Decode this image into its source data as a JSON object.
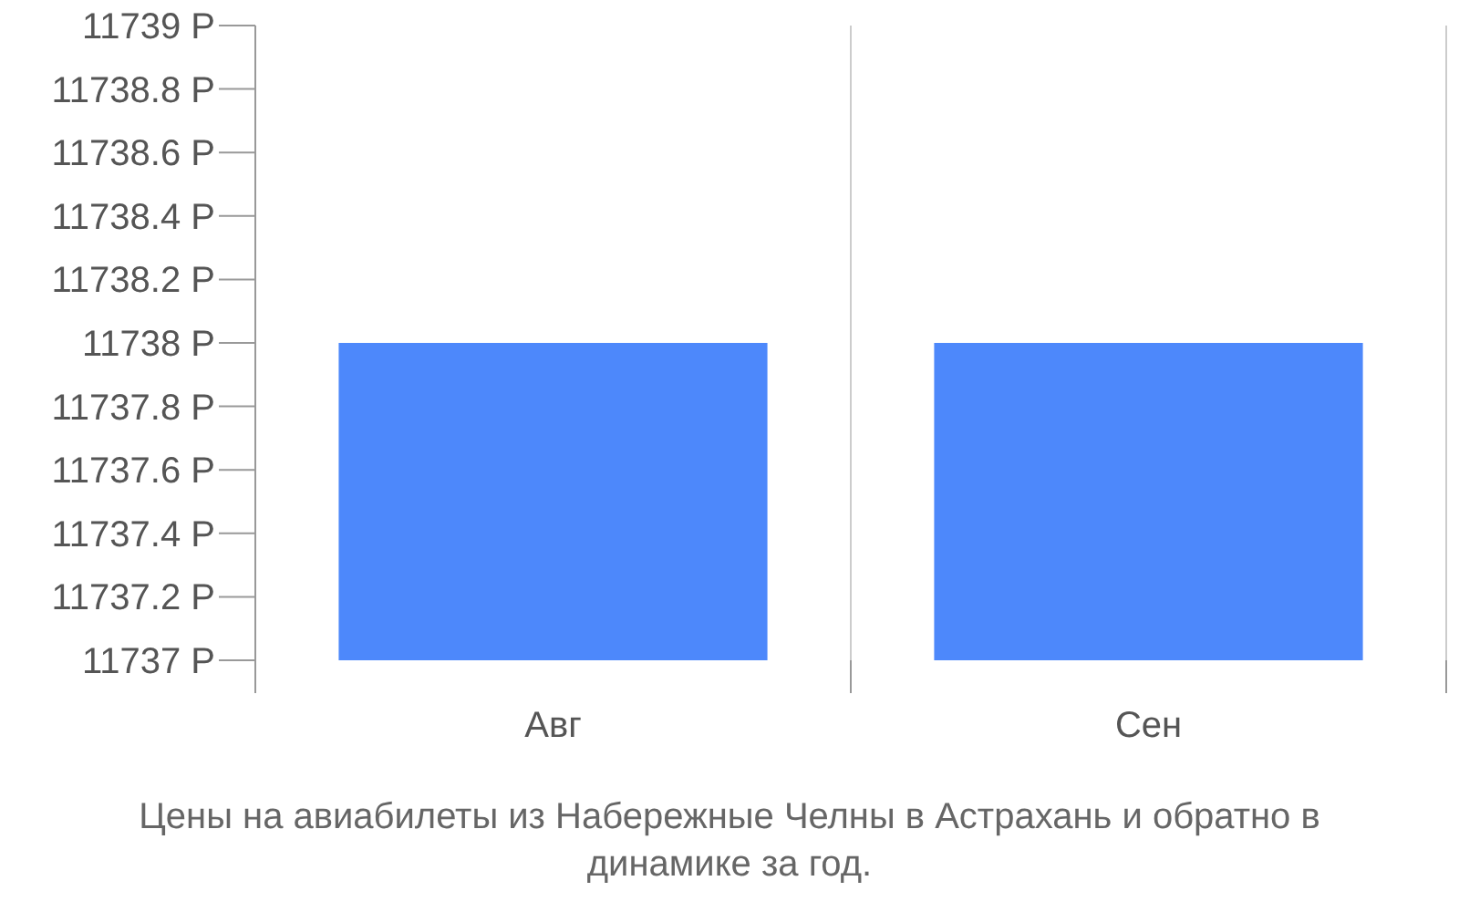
{
  "chart_data": {
    "type": "bar",
    "title": "Цены на авиабилеты из Набережные Челны в Астрахань и обратно в динамике за год.",
    "categories": [
      "Авг",
      "Сен"
    ],
    "values": [
      11738,
      11738
    ],
    "color": "#4d88fb",
    "ylim": [
      11737,
      11739
    ],
    "yticks": [
      {
        "value": 11737,
        "label": "11737 Р"
      },
      {
        "value": 11737.2,
        "label": "11737.2 Р"
      },
      {
        "value": 11737.4,
        "label": "11737.4 Р"
      },
      {
        "value": 11737.6,
        "label": "11737.6 Р"
      },
      {
        "value": 11737.8,
        "label": "11737.8 Р"
      },
      {
        "value": 11738,
        "label": "11738 Р"
      },
      {
        "value": 11738.2,
        "label": "11738.2 Р"
      },
      {
        "value": 11738.4,
        "label": "11738.4 Р"
      },
      {
        "value": 11738.6,
        "label": "11738.6 Р"
      },
      {
        "value": 11738.8,
        "label": "11738.8 Р"
      },
      {
        "value": 11739,
        "label": "11739 Р"
      }
    ],
    "grid": "x"
  }
}
